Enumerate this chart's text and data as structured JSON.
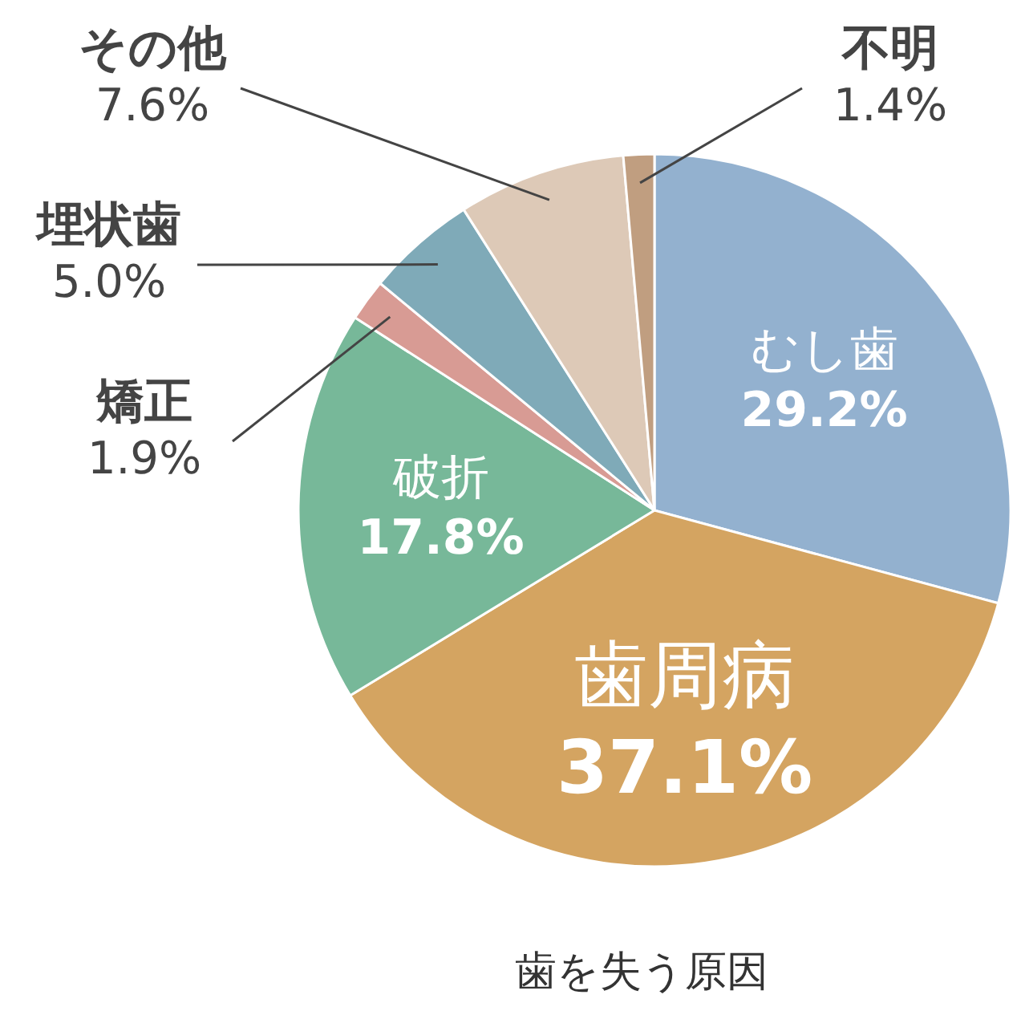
{
  "chart_data": {
    "type": "pie",
    "title": "歯を失う原因",
    "categories": [
      "むし歯",
      "歯周病",
      "破折",
      "矯正",
      "埋状歯",
      "その他",
      "不明"
    ],
    "values": [
      29.2,
      37.1,
      17.8,
      1.9,
      5.0,
      7.6,
      1.4
    ],
    "colors": [
      "#93b1cf",
      "#d4a461",
      "#77b899",
      "#d89b94",
      "#7faab8",
      "#ddc9b7",
      "#c09e80"
    ],
    "value_labels": [
      "29.2%",
      "37.1%",
      "17.8%",
      "1.9%",
      "5.0%",
      "7.6%",
      "1.4%"
    ]
  }
}
